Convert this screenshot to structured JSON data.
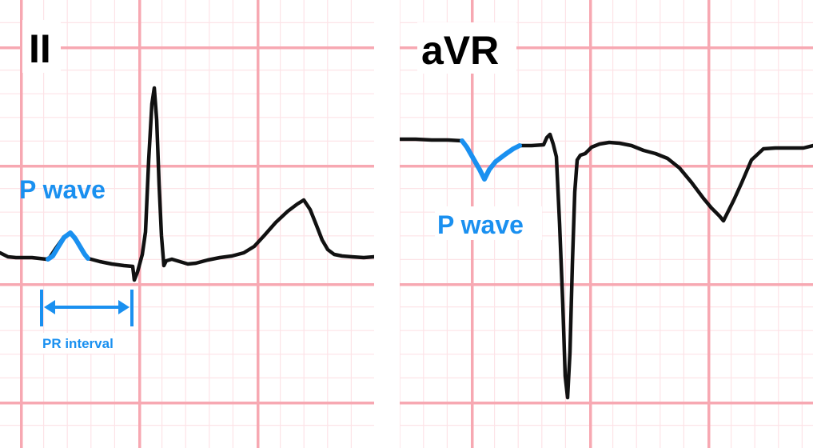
{
  "colors": {
    "grid_major": "#f7a8b2",
    "grid_minor": "#fde3e7",
    "trace": "#111111",
    "annotation": "#1a90f0"
  },
  "panels": {
    "ii": {
      "lead": "II",
      "p_wave_label": "P wave",
      "pr_interval_label": "PR interval"
    },
    "avr": {
      "lead": "aVR",
      "p_wave_label": "P wave"
    }
  }
}
